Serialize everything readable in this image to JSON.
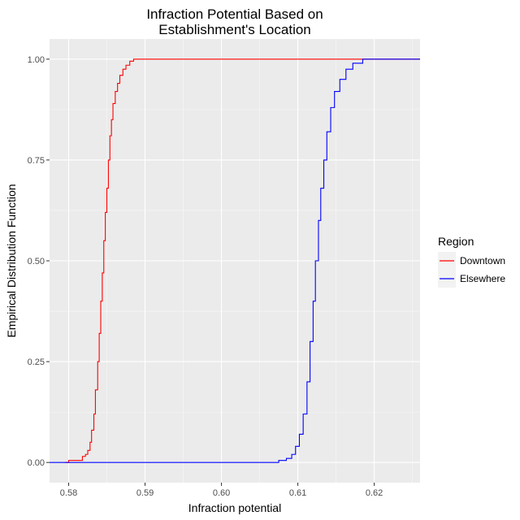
{
  "chart_data": {
    "type": "line",
    "title_line1": "Infraction Potential Based on",
    "title_line2": "Establishment's Location",
    "xlabel": "Infraction potential",
    "ylabel": "Empirical Distribution Function",
    "xlim": [
      0.5775,
      0.626
    ],
    "ylim": [
      -0.05,
      1.05
    ],
    "x_ticks": [
      0.58,
      0.59,
      0.6,
      0.61,
      0.62
    ],
    "x_tick_labels": [
      "0.58",
      "0.59",
      "0.60",
      "0.61",
      "0.62"
    ],
    "y_ticks": [
      0.0,
      0.25,
      0.5,
      0.75,
      1.0
    ],
    "y_tick_labels": [
      "0.00",
      "0.25",
      "0.50",
      "0.75",
      "1.00"
    ],
    "grid": true,
    "panel_background": "#ebebeb",
    "legend": {
      "title": "Region",
      "position": "right"
    },
    "series": [
      {
        "name": "Downtown",
        "color": "#ff0000",
        "points": [
          [
            0.5795,
            0.0
          ],
          [
            0.58,
            0.005
          ],
          [
            0.5812,
            0.005
          ],
          [
            0.5818,
            0.015
          ],
          [
            0.5822,
            0.02
          ],
          [
            0.5825,
            0.03
          ],
          [
            0.5828,
            0.05
          ],
          [
            0.583,
            0.08
          ],
          [
            0.5833,
            0.12
          ],
          [
            0.5835,
            0.18
          ],
          [
            0.5838,
            0.25
          ],
          [
            0.584,
            0.32
          ],
          [
            0.5842,
            0.4
          ],
          [
            0.5844,
            0.47
          ],
          [
            0.5846,
            0.55
          ],
          [
            0.5848,
            0.62
          ],
          [
            0.585,
            0.68
          ],
          [
            0.5852,
            0.75
          ],
          [
            0.5854,
            0.81
          ],
          [
            0.5856,
            0.85
          ],
          [
            0.5858,
            0.89
          ],
          [
            0.5861,
            0.92
          ],
          [
            0.5864,
            0.94
          ],
          [
            0.5867,
            0.96
          ],
          [
            0.5871,
            0.975
          ],
          [
            0.5875,
            0.985
          ],
          [
            0.588,
            0.995
          ],
          [
            0.5885,
            1.0
          ],
          [
            0.626,
            1.0
          ]
        ]
      },
      {
        "name": "Elsewhere",
        "color": "#0000ff",
        "points": [
          [
            0.5775,
            0.0
          ],
          [
            0.606,
            0.0
          ],
          [
            0.6075,
            0.005
          ],
          [
            0.6085,
            0.01
          ],
          [
            0.6092,
            0.02
          ],
          [
            0.6097,
            0.04
          ],
          [
            0.6102,
            0.07
          ],
          [
            0.6107,
            0.12
          ],
          [
            0.6112,
            0.2
          ],
          [
            0.6116,
            0.3
          ],
          [
            0.612,
            0.4
          ],
          [
            0.6123,
            0.5
          ],
          [
            0.6127,
            0.6
          ],
          [
            0.613,
            0.68
          ],
          [
            0.6134,
            0.75
          ],
          [
            0.6138,
            0.82
          ],
          [
            0.6143,
            0.88
          ],
          [
            0.6148,
            0.92
          ],
          [
            0.6155,
            0.95
          ],
          [
            0.6163,
            0.975
          ],
          [
            0.6172,
            0.99
          ],
          [
            0.6185,
            1.0
          ],
          [
            0.626,
            1.0
          ]
        ]
      }
    ]
  }
}
